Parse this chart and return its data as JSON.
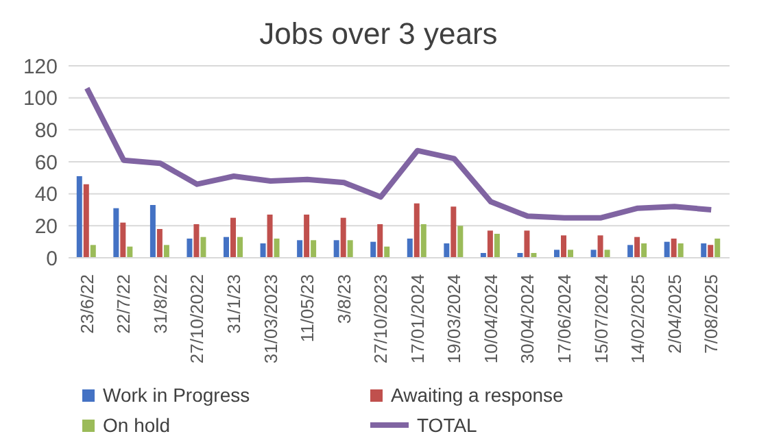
{
  "chart_data": {
    "type": "bar",
    "title": "Jobs over 3 years",
    "categories": [
      "23/6/22",
      "22/7/22",
      "31/8/22",
      "27/10/2022",
      "31/1/23",
      "31/03/2023",
      "11/05/23",
      "3/8/23",
      "27/10/2023",
      "17/01/2024",
      "19/03/2024",
      "10/04/2024",
      "30/04/2024",
      "17/06/2024",
      "15/07/2024",
      "14/02/2025",
      "2/04/2025",
      "7/08/2025"
    ],
    "series": [
      {
        "name": "Work in Progress",
        "color": "#4472c4",
        "values": [
          51,
          31,
          33,
          12,
          13,
          9,
          11,
          11,
          10,
          12,
          9,
          3,
          3,
          5,
          5,
          8,
          10,
          9
        ]
      },
      {
        "name": "Awaiting a response",
        "color": "#c0504d",
        "values": [
          46,
          22,
          18,
          21,
          25,
          27,
          27,
          25,
          21,
          34,
          32,
          17,
          17,
          14,
          14,
          13,
          12,
          8
        ]
      },
      {
        "name": "On hold",
        "color": "#9bbb59",
        "values": [
          8,
          7,
          8,
          13,
          13,
          12,
          11,
          11,
          7,
          21,
          20,
          15,
          3,
          5,
          5,
          9,
          9,
          12
        ]
      },
      {
        "name": "TOTAL",
        "type": "line",
        "color": "#8064a2",
        "marker": "none",
        "values": [
          106,
          61,
          59,
          46,
          51,
          48,
          49,
          47,
          38,
          67,
          62,
          35,
          26,
          25,
          25,
          31,
          32,
          30
        ]
      }
    ],
    "ylim": [
      0,
      120
    ],
    "yticks": [
      0,
      20,
      40,
      60,
      80,
      100,
      120
    ],
    "grid": "y",
    "legend": "bottom"
  }
}
